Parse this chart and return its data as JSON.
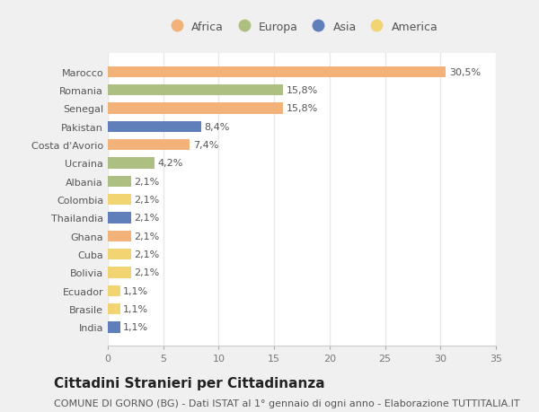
{
  "countries": [
    "Marocco",
    "Romania",
    "Senegal",
    "Pakistan",
    "Costa d'Avorio",
    "Ucraina",
    "Albania",
    "Colombia",
    "Thailandia",
    "Ghana",
    "Cuba",
    "Bolivia",
    "Ecuador",
    "Brasile",
    "India"
  ],
  "values": [
    30.5,
    15.8,
    15.8,
    8.4,
    7.4,
    4.2,
    2.1,
    2.1,
    2.1,
    2.1,
    2.1,
    2.1,
    1.1,
    1.1,
    1.1
  ],
  "labels": [
    "30,5%",
    "15,8%",
    "15,8%",
    "8,4%",
    "7,4%",
    "4,2%",
    "2,1%",
    "2,1%",
    "2,1%",
    "2,1%",
    "2,1%",
    "2,1%",
    "1,1%",
    "1,1%",
    "1,1%"
  ],
  "colors": [
    "#F2B27A",
    "#AEBF82",
    "#F2B27A",
    "#5F7FBB",
    "#F2B27A",
    "#AEBF82",
    "#AEBF82",
    "#F2D472",
    "#5F7FBB",
    "#F2B27A",
    "#F2D472",
    "#F2D472",
    "#F2D472",
    "#F2D472",
    "#5F7FBB"
  ],
  "legend_labels": [
    "Africa",
    "Europa",
    "Asia",
    "America"
  ],
  "legend_colors": [
    "#F2B27A",
    "#AEBF82",
    "#5F7FBB",
    "#F2D472"
  ],
  "title": "Cittadini Stranieri per Cittadinanza",
  "subtitle": "COMUNE DI GORNO (BG) - Dati ISTAT al 1° gennaio di ogni anno - Elaborazione TUTTITALIA.IT",
  "xlim": [
    0,
    35
  ],
  "xticks": [
    0,
    5,
    10,
    15,
    20,
    25,
    30,
    35
  ],
  "figure_bg": "#f0f0f0",
  "plot_bg": "#ffffff",
  "grid_color": "#e8e8e8",
  "bar_height": 0.6,
  "title_fontsize": 11,
  "subtitle_fontsize": 8,
  "tick_fontsize": 8,
  "label_fontsize": 8,
  "legend_fontsize": 9
}
